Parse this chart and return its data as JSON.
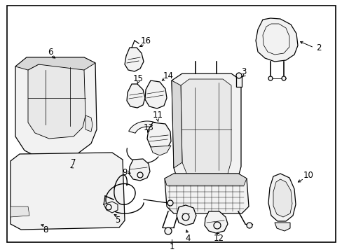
{
  "background_color": "#ffffff",
  "border_color": "#000000",
  "line_color": "#000000",
  "text_color": "#000000",
  "fig_width": 4.89,
  "fig_height": 3.6,
  "dpi": 100,
  "fill_light": "#f2f2f2",
  "fill_medium": "#e8e8e8",
  "fill_dark": "#d8d8d8"
}
